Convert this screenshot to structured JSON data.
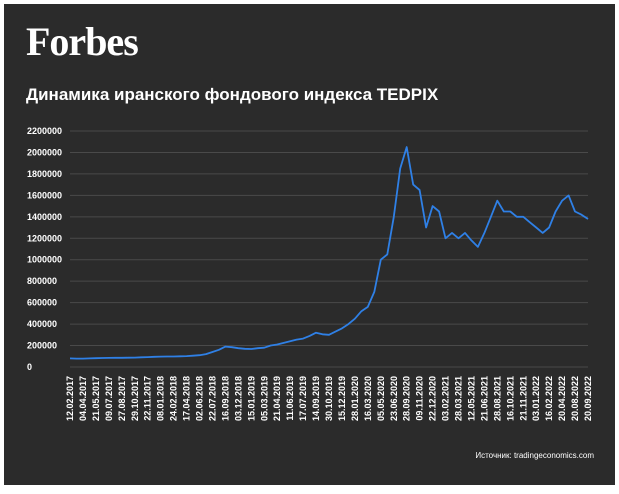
{
  "brand": "Forbes",
  "source": "Источник: tradingeconomics.com",
  "chart_data": {
    "type": "line",
    "title": "Динамика иранского фондового индекса TEDPIX",
    "categories": [
      "12.02.2017",
      null,
      "04.04.2017",
      null,
      "21.05.2017",
      null,
      "09.07.2017",
      null,
      "27.08.2017",
      null,
      "29.10.2017",
      null,
      "22.11.2017",
      null,
      "08.01.2018",
      null,
      "24.02.2018",
      null,
      "17.04.2018",
      null,
      "02.06.2018",
      null,
      "22.07.2018",
      null,
      "16.09.2018",
      null,
      "03.12.2018",
      null,
      "15.01.2019",
      null,
      "05.03.2019",
      null,
      "21.04.2019",
      null,
      "11.06.2019",
      null,
      "17.07.2019",
      null,
      "14.09.2019",
      null,
      "30.10.2019",
      null,
      "15.12.2019",
      null,
      "28.01.2020",
      null,
      "16.03.2020",
      null,
      "05.05.2020",
      null,
      "23.06.2020",
      null,
      "28.09.2020",
      null,
      "09.11.2020",
      null,
      "22.12.2020",
      null,
      "03.02.2021",
      null,
      "28.03.2021",
      null,
      "12.05.2021",
      null,
      "21.06.2021",
      null,
      "28.08.2021",
      null,
      "16.10.2021",
      null,
      "21.11.2021",
      null,
      "03.01.2022",
      null,
      "16.02.2022",
      null,
      "20.04.2022",
      null,
      "20.08.2022",
      null,
      "20.09.2022"
    ],
    "series": [
      {
        "name": "TEDPIX",
        "color": "#2f80e6",
        "values": [
          80000,
          78000,
          78000,
          80000,
          82000,
          84000,
          85000,
          86000,
          86000,
          87000,
          88000,
          90000,
          92000,
          95000,
          97000,
          98000,
          98000,
          100000,
          102000,
          105000,
          110000,
          120000,
          140000,
          160000,
          190000,
          185000,
          175000,
          170000,
          168000,
          175000,
          180000,
          200000,
          210000,
          225000,
          240000,
          255000,
          265000,
          290000,
          320000,
          305000,
          300000,
          330000,
          360000,
          400000,
          450000,
          520000,
          560000,
          700000,
          1000000,
          1050000,
          1400000,
          1850000,
          2050000,
          1700000,
          1650000,
          1300000,
          1500000,
          1450000,
          1200000,
          1250000,
          1200000,
          1250000,
          1180000,
          1120000,
          1250000,
          1400000,
          1550000,
          1450000,
          1450000,
          1400000,
          1400000,
          1350000,
          1300000,
          1250000,
          1300000,
          1450000,
          1550000,
          1600000,
          1450000,
          1420000,
          1380000
        ]
      }
    ],
    "ylim": [
      0,
      2200000
    ],
    "yticks": [
      0,
      200000,
      400000,
      600000,
      800000,
      1000000,
      1200000,
      1400000,
      1600000,
      1800000,
      2000000,
      2200000
    ],
    "grid": true
  }
}
